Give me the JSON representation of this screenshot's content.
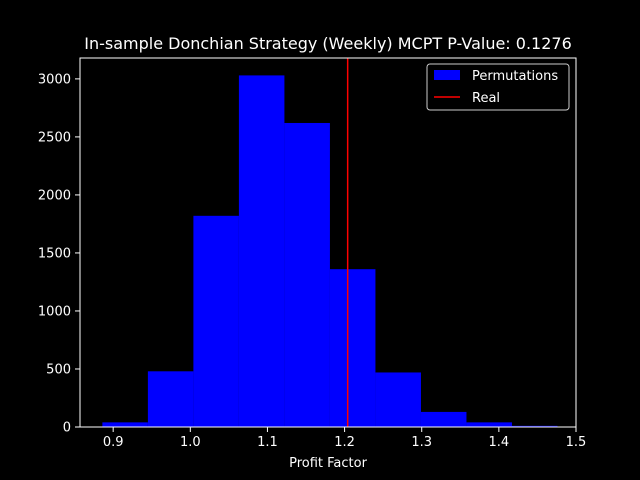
{
  "chart_data": {
    "type": "bar",
    "title": "In-sample Donchian Strategy (Weekly) MCPT P-Value: 0.1276",
    "xlabel": "Profit Factor",
    "ylabel": "",
    "xlim": [
      0.857,
      1.5
    ],
    "ylim": [
      0,
      3180
    ],
    "xticks": [
      {
        "value": 0.9,
        "label": "0.9"
      },
      {
        "value": 1.0,
        "label": "1.0"
      },
      {
        "value": 1.1,
        "label": "1.1"
      },
      {
        "value": 1.2,
        "label": "1.2"
      },
      {
        "value": 1.3,
        "label": "1.3"
      },
      {
        "value": 1.4,
        "label": "1.4"
      },
      {
        "value": 1.5,
        "label": "1.5"
      }
    ],
    "yticks": [
      {
        "value": 0,
        "label": "0"
      },
      {
        "value": 500,
        "label": "500"
      },
      {
        "value": 1000,
        "label": "1000"
      },
      {
        "value": 1500,
        "label": "1500"
      },
      {
        "value": 2000,
        "label": "2000"
      },
      {
        "value": 2500,
        "label": "2500"
      },
      {
        "value": 3000,
        "label": "3000"
      }
    ],
    "series": [
      {
        "name": "Permutations",
        "color": "#0000ff",
        "bins": [
          0.886,
          0.945,
          1.004,
          1.063,
          1.122,
          1.181,
          1.24,
          1.299,
          1.358,
          1.417,
          1.476
        ],
        "values": [
          40,
          480,
          1820,
          3030,
          2620,
          1360,
          470,
          130,
          40,
          10
        ]
      },
      {
        "name": "Real",
        "color": "#ff0000",
        "x": 1.204
      }
    ],
    "grid": false,
    "legend": "top-right"
  }
}
